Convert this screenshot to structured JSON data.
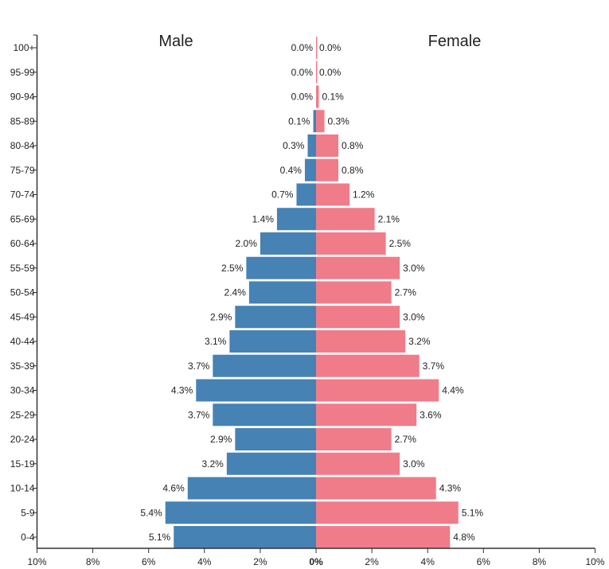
{
  "chart_data": {
    "type": "bar",
    "orientation": "horizontal-diverging",
    "categories": [
      "100+",
      "95-99",
      "90-94",
      "85-89",
      "80-84",
      "75-79",
      "70-74",
      "65-69",
      "60-64",
      "55-59",
      "50-54",
      "45-49",
      "40-44",
      "35-39",
      "30-34",
      "25-29",
      "20-24",
      "15-19",
      "10-14",
      "5-9",
      "0-4"
    ],
    "series": [
      {
        "name": "Male",
        "color": "#4682b4",
        "side": "left",
        "values": [
          0.0,
          0.0,
          0.0,
          0.1,
          0.3,
          0.4,
          0.7,
          1.4,
          2.0,
          2.5,
          2.4,
          2.9,
          3.1,
          3.7,
          4.3,
          3.7,
          2.9,
          3.2,
          4.6,
          5.4,
          5.1
        ],
        "labels": [
          "0.0%",
          "0.0%",
          "0.0%",
          "0.1%",
          "0.3%",
          "0.4%",
          "0.7%",
          "1.4%",
          "2.0%",
          "2.5%",
          "2.4%",
          "2.9%",
          "3.1%",
          "3.7%",
          "4.3%",
          "3.7%",
          "2.9%",
          "3.2%",
          "4.6%",
          "5.4%",
          "5.1%"
        ]
      },
      {
        "name": "Female",
        "color": "#f07c8a",
        "side": "right",
        "values": [
          0.0,
          0.0,
          0.1,
          0.3,
          0.8,
          0.8,
          1.2,
          2.1,
          2.5,
          3.0,
          2.7,
          3.0,
          3.2,
          3.7,
          4.4,
          3.6,
          2.7,
          3.0,
          4.3,
          5.1,
          4.8
        ],
        "labels": [
          "0.0%",
          "0.0%",
          "0.1%",
          "0.3%",
          "0.8%",
          "0.8%",
          "1.2%",
          "2.1%",
          "2.5%",
          "3.0%",
          "2.7%",
          "3.0%",
          "3.2%",
          "3.7%",
          "4.4%",
          "3.6%",
          "2.7%",
          "3.0%",
          "4.3%",
          "5.1%",
          "4.8%"
        ]
      }
    ],
    "xlim": [
      -10,
      10
    ],
    "xticks": [
      -10,
      -8,
      -6,
      -4,
      -2,
      0,
      2,
      4,
      6,
      8,
      10
    ],
    "xtick_labels": [
      "10%",
      "8%",
      "6%",
      "4%",
      "2%",
      "0%",
      "2%",
      "4%",
      "6%",
      "8%",
      "10%"
    ],
    "grid": false
  }
}
